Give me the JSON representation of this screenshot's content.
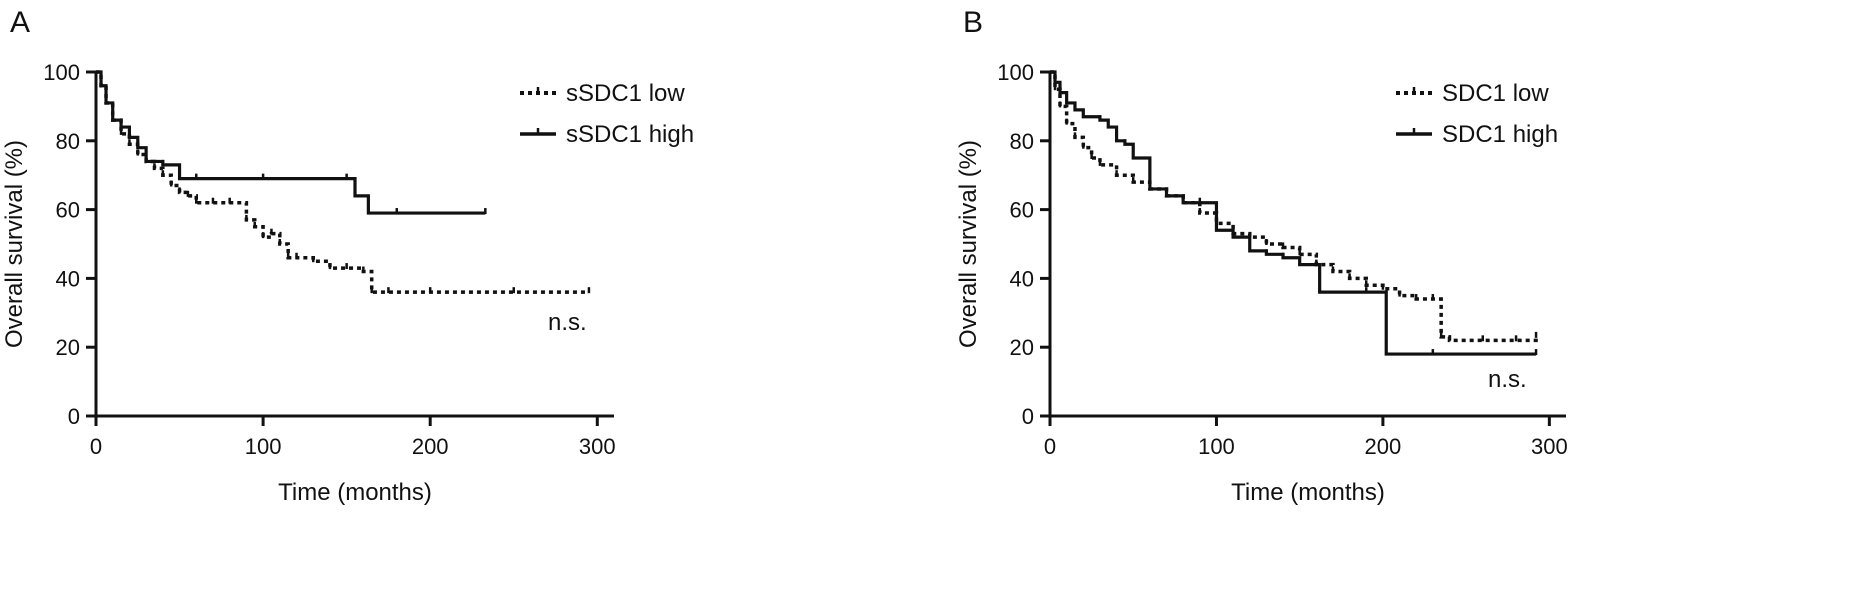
{
  "chart_data": [
    {
      "type": "line",
      "panel_label": "A",
      "xlabel": "Time (months)",
      "ylabel": "Overall survival (%)",
      "xlim": [
        0,
        310
      ],
      "ylim": [
        0,
        100
      ],
      "xticks": [
        0,
        100,
        200,
        300
      ],
      "yticks": [
        0,
        20,
        40,
        60,
        80,
        100
      ],
      "grid": false,
      "legend": "top-right",
      "annotation": "n.s.",
      "series": [
        {
          "name": "sSDC1 low",
          "style": "dotted",
          "x": [
            0,
            3,
            6,
            10,
            15,
            20,
            25,
            30,
            35,
            40,
            45,
            50,
            55,
            60,
            70,
            80,
            90,
            95,
            100,
            105,
            110,
            115,
            120,
            130,
            140,
            150,
            160,
            165,
            175,
            200,
            250,
            295
          ],
          "y": [
            100,
            96,
            91,
            86,
            82,
            79,
            76,
            74,
            72,
            70,
            67,
            65,
            64,
            62,
            62,
            62,
            57,
            55,
            52,
            53,
            50,
            46,
            46,
            45,
            43,
            43,
            42,
            36,
            36,
            36,
            36,
            36
          ]
        },
        {
          "name": "sSDC1 high",
          "style": "solid",
          "x": [
            0,
            3,
            6,
            10,
            15,
            20,
            25,
            30,
            40,
            50,
            60,
            100,
            150,
            155,
            163,
            180,
            233
          ],
          "y": [
            100,
            96,
            91,
            86,
            84,
            81,
            78,
            74,
            73,
            69,
            69,
            69,
            69,
            64,
            59,
            59,
            59
          ]
        }
      ]
    },
    {
      "type": "line",
      "panel_label": "B",
      "xlabel": "Time (months)",
      "ylabel": "Overall survival (%)",
      "xlim": [
        0,
        310
      ],
      "ylim": [
        0,
        100
      ],
      "xticks": [
        0,
        100,
        200,
        300
      ],
      "yticks": [
        0,
        20,
        40,
        60,
        80,
        100
      ],
      "grid": false,
      "legend": "top-right",
      "annotation": "n.s.",
      "series": [
        {
          "name": "SDC1 low",
          "style": "dotted",
          "x": [
            0,
            3,
            6,
            10,
            15,
            20,
            25,
            30,
            40,
            50,
            60,
            70,
            80,
            90,
            100,
            110,
            120,
            130,
            140,
            150,
            160,
            170,
            180,
            190,
            200,
            210,
            220,
            230,
            235,
            240,
            260,
            280,
            292
          ],
          "y": [
            100,
            95,
            90,
            85,
            81,
            78,
            75,
            73,
            70,
            68,
            66,
            64,
            62,
            59,
            56,
            53,
            52,
            50,
            49,
            47,
            44,
            42,
            40,
            38,
            37,
            35,
            34,
            34,
            23,
            22,
            22,
            22,
            23
          ]
        },
        {
          "name": "SDC1 high",
          "style": "solid",
          "x": [
            0,
            3,
            6,
            10,
            15,
            20,
            30,
            35,
            40,
            45,
            50,
            60,
            70,
            80,
            90,
            100,
            110,
            120,
            130,
            140,
            150,
            162,
            190,
            202,
            230,
            292
          ],
          "y": [
            100,
            97,
            94,
            91,
            89,
            87,
            86,
            84,
            80,
            79,
            75,
            66,
            64,
            62,
            62,
            54,
            52,
            48,
            47,
            46,
            44,
            36,
            36,
            18,
            18,
            18
          ]
        }
      ]
    }
  ]
}
